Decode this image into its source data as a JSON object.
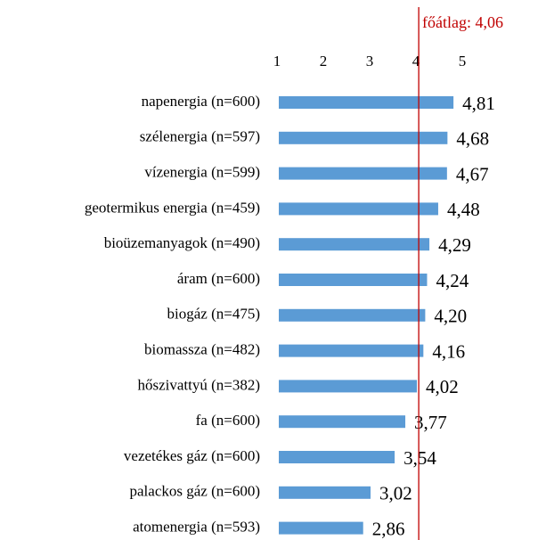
{
  "chart_data": {
    "type": "bar",
    "orientation": "horizontal",
    "categories": [
      "napenergia (n=600)",
      "szélenergia (n=597)",
      "vízenergia (n=599)",
      "geotermikus energia (n=459)",
      "bioüzemanyagok (n=490)",
      "áram (n=600)",
      "biogáz (n=475)",
      "biomassza (n=482)",
      "hőszivattyú (n=382)",
      "fa (n=600)",
      "vezetékes gáz (n=600)",
      "palackos gáz (n=600)",
      "atomenergia (n=593)"
    ],
    "values": [
      4.81,
      4.68,
      4.67,
      4.48,
      4.29,
      4.24,
      4.2,
      4.16,
      4.02,
      3.77,
      3.54,
      3.02,
      2.86
    ],
    "value_labels": [
      "4,81",
      "4,68",
      "4,67",
      "4,48",
      "4,29",
      "4,24",
      "4,20",
      "4,16",
      "4,02",
      "3,77",
      "3,54",
      "3,02",
      "2,86"
    ],
    "color": "#5b9bd5",
    "xlim": [
      1,
      5
    ],
    "xticks": [
      1,
      2,
      3,
      4,
      5
    ],
    "reference_line": {
      "value": 4.06,
      "label": "főátlag: 4,06",
      "color": "#c00000"
    }
  }
}
